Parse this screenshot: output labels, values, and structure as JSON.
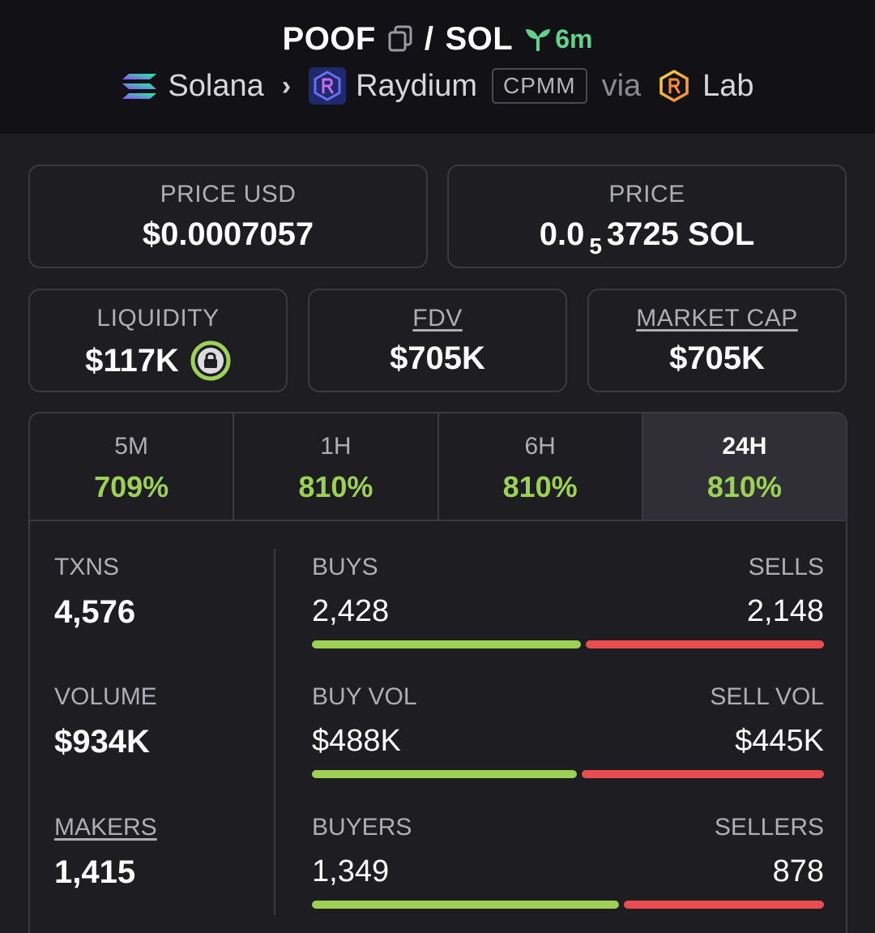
{
  "header": {
    "base_token": "POOF",
    "separator": "/",
    "quote_token": "SOL",
    "age": "6m",
    "chain": "Solana",
    "dex": "Raydium",
    "pool_type": "CPMM",
    "via": "via",
    "launchpad": "Lab",
    "colors": {
      "age_green": "#5fd38a"
    },
    "icons": [
      "copy-icon",
      "sprout-icon",
      "solana-logo-icon",
      "chevron-right-icon",
      "raydium-logo-icon",
      "lab-logo-icon"
    ]
  },
  "price": {
    "usd_label": "PRICE USD",
    "usd_value": "$0.0007057",
    "native_label": "PRICE",
    "native_prefix": "0.0",
    "native_zero_count": "5",
    "native_suffix": "3725 SOL"
  },
  "metrics": {
    "liquidity_label": "LIQUIDITY",
    "liquidity_value": "$117K",
    "fdv_label": "FDV",
    "fdv_value": "$705K",
    "mcap_label": "MARKET CAP",
    "mcap_value": "$705K"
  },
  "timeframes": [
    {
      "label": "5M",
      "change": "709%"
    },
    {
      "label": "1H",
      "change": "810%"
    },
    {
      "label": "6H",
      "change": "810%"
    },
    {
      "label": "24H",
      "change": "810%",
      "active": true
    }
  ],
  "stats": {
    "txns_label": "TXNS",
    "txns_value": "4,576",
    "volume_label": "VOLUME",
    "volume_value": "$934K",
    "makers_label": "MAKERS",
    "makers_value": "1,415",
    "buys_label": "BUYS",
    "buys_value": "2,428",
    "sells_label": "SELLS",
    "sells_value": "2,148",
    "buy_vol_label": "BUY VOL",
    "buy_vol_value": "$488K",
    "sell_vol_label": "SELL VOL",
    "sell_vol_value": "$445K",
    "buyers_label": "BUYERS",
    "buyers_value": "1,349",
    "sellers_label": "SELLERS",
    "sellers_value": "878",
    "ratios": {
      "buys": 0.531,
      "buy_vol": 0.523,
      "buyers": 0.606
    },
    "colors": {
      "buy": "#9cd155",
      "sell": "#ea4d50"
    }
  }
}
